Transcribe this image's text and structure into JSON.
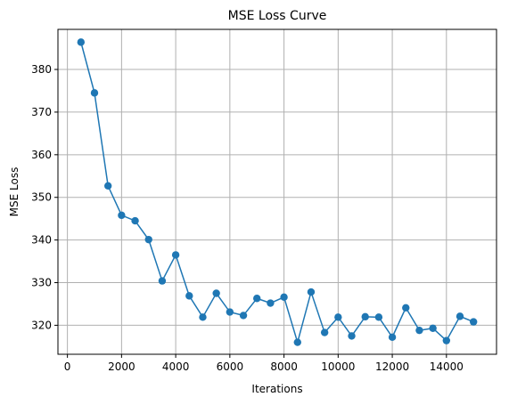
{
  "chart_data": {
    "type": "line",
    "title": "MSE Loss Curve",
    "xlabel": "Iterations",
    "ylabel": "MSE Loss",
    "xlim": [
      -350,
      15850
    ],
    "ylim": [
      313.2,
      389.4
    ],
    "xticks": [
      0,
      2000,
      4000,
      6000,
      8000,
      10000,
      12000,
      14000
    ],
    "yticks": [
      320,
      330,
      340,
      350,
      360,
      370,
      380
    ],
    "grid": true,
    "marker": "circle",
    "color": "#1f77b4",
    "series": [
      {
        "x": [
          500,
          1000,
          1500,
          2000,
          2500,
          3000,
          3500,
          4000,
          4500,
          5000,
          5500,
          6000,
          6500,
          7000,
          7500,
          8000,
          8500,
          9000,
          9500,
          10000,
          10500,
          11000,
          11500,
          12000,
          12500,
          13000,
          13500,
          14000,
          14500,
          15000
        ],
        "y": [
          386.4,
          374.5,
          352.7,
          345.8,
          344.5,
          340.1,
          330.4,
          336.5,
          326.9,
          321.9,
          327.5,
          323.1,
          322.3,
          326.3,
          325.2,
          326.6,
          316.0,
          327.8,
          318.3,
          321.9,
          317.5,
          322.0,
          321.9,
          317.2,
          324.1,
          318.8,
          319.3,
          316.4,
          322.1,
          320.8
        ]
      }
    ]
  }
}
